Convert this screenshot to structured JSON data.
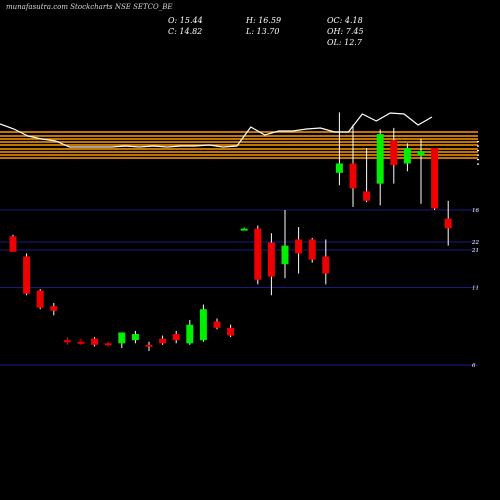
{
  "watermark": "munafasutra.com",
  "title": "Stockcharts NSE SETCO_BE",
  "ohlc": {
    "o": "O: 15.44",
    "c": "C: 14.82",
    "h": "H: 16.59",
    "l": "L: 13.70",
    "oc": "OC: 4.18",
    "oh": "OH: 7.45",
    "ol": "OL: 12.7"
  },
  "colors": {
    "background": "#000000",
    "up": "#00ee00",
    "down": "#ee0000",
    "line": "#ffffff",
    "levels": "#ff9900",
    "grid": "#1a1a80"
  },
  "chart_data": [
    {
      "type": "line",
      "title": "",
      "x": [
        0,
        1,
        2,
        3,
        4,
        5,
        6,
        7,
        8,
        9,
        10,
        11,
        12,
        13,
        14,
        15,
        16,
        17,
        18,
        19,
        20,
        21,
        22,
        23,
        24,
        25,
        26,
        27,
        28,
        29,
        30,
        31
      ],
      "series": [
        {
          "values": [
            124,
            129,
            136,
            139,
            141,
            147,
            147,
            147,
            147,
            146,
            147,
            146,
            147,
            146,
            146,
            145,
            147,
            146,
            127,
            135,
            131,
            131,
            129,
            128,
            132,
            132,
            114,
            121,
            113,
            114,
            125,
            117
          ]
        }
      ],
      "level_lines": 9
    },
    {
      "type": "candlestick",
      "yticks": [
        "22",
        "21",
        "16",
        "11",
        "6"
      ],
      "candles": [
        {
          "o": 14.3,
          "h": 14.4,
          "l": 13.4,
          "c": 13.3
        },
        {
          "o": 13.0,
          "h": 13.2,
          "l": 10.5,
          "c": 10.6
        },
        {
          "o": 10.8,
          "h": 10.9,
          "l": 9.6,
          "c": 9.7
        },
        {
          "o": 9.8,
          "h": 10.0,
          "l": 9.2,
          "c": 9.5
        },
        {
          "o": 7.6,
          "h": 7.8,
          "l": 7.3,
          "c": 7.5
        },
        {
          "o": 7.5,
          "h": 7.7,
          "l": 7.3,
          "c": 7.4
        },
        {
          "o": 7.7,
          "h": 7.8,
          "l": 7.2,
          "c": 7.3
        },
        {
          "o": 7.4,
          "h": 7.5,
          "l": 7.2,
          "c": 7.3
        },
        {
          "o": 7.4,
          "h": 8.1,
          "l": 7.1,
          "c": 8.1
        },
        {
          "o": 7.6,
          "h": 8.2,
          "l": 7.4,
          "c": 8.0
        },
        {
          "o": 7.3,
          "h": 7.5,
          "l": 6.9,
          "c": 7.2
        },
        {
          "o": 7.7,
          "h": 7.9,
          "l": 7.3,
          "c": 7.4
        },
        {
          "o": 8.0,
          "h": 8.2,
          "l": 7.4,
          "c": 7.6
        },
        {
          "o": 7.4,
          "h": 8.9,
          "l": 7.3,
          "c": 8.6
        },
        {
          "o": 7.6,
          "h": 9.9,
          "l": 7.5,
          "c": 9.6
        },
        {
          "o": 8.8,
          "h": 9.0,
          "l": 8.3,
          "c": 8.4
        },
        {
          "o": 8.4,
          "h": 8.6,
          "l": 7.8,
          "c": 7.9
        },
        {
          "o": 14.8,
          "h": 14.9,
          "l": 14.7,
          "c": 14.8
        },
        {
          "o": 14.8,
          "h": 15.0,
          "l": 11.2,
          "c": 11.5
        },
        {
          "o": 13.9,
          "h": 14.5,
          "l": 10.5,
          "c": 11.7
        },
        {
          "o": 12.5,
          "h": 16.0,
          "l": 11.6,
          "c": 13.7
        },
        {
          "o": 14.1,
          "h": 14.9,
          "l": 11.9,
          "c": 13.2
        },
        {
          "o": 14.1,
          "h": 14.2,
          "l": 12.6,
          "c": 12.8
        },
        {
          "o": 13.0,
          "h": 14.1,
          "l": 11.2,
          "c": 11.9
        },
        {
          "o": 18.4,
          "h": 22.3,
          "l": 17.6,
          "c": 19.0
        },
        {
          "o": 19.0,
          "h": 21.5,
          "l": 16.2,
          "c": 17.4
        },
        {
          "o": 17.2,
          "h": 20.0,
          "l": 16.5,
          "c": 16.6
        },
        {
          "o": 17.7,
          "h": 21.2,
          "l": 16.3,
          "c": 20.9
        },
        {
          "o": 20.5,
          "h": 21.3,
          "l": 17.7,
          "c": 18.9
        },
        {
          "o": 19.0,
          "h": 20.3,
          "l": 18.5,
          "c": 20.0
        },
        {
          "o": 19.5,
          "h": 20.6,
          "l": 16.4,
          "c": 19.8
        },
        {
          "o": 20.0,
          "h": 20.0,
          "l": 16.0,
          "c": 16.1
        },
        {
          "o": 15.44,
          "h": 16.59,
          "l": 13.7,
          "c": 14.82
        }
      ]
    }
  ]
}
